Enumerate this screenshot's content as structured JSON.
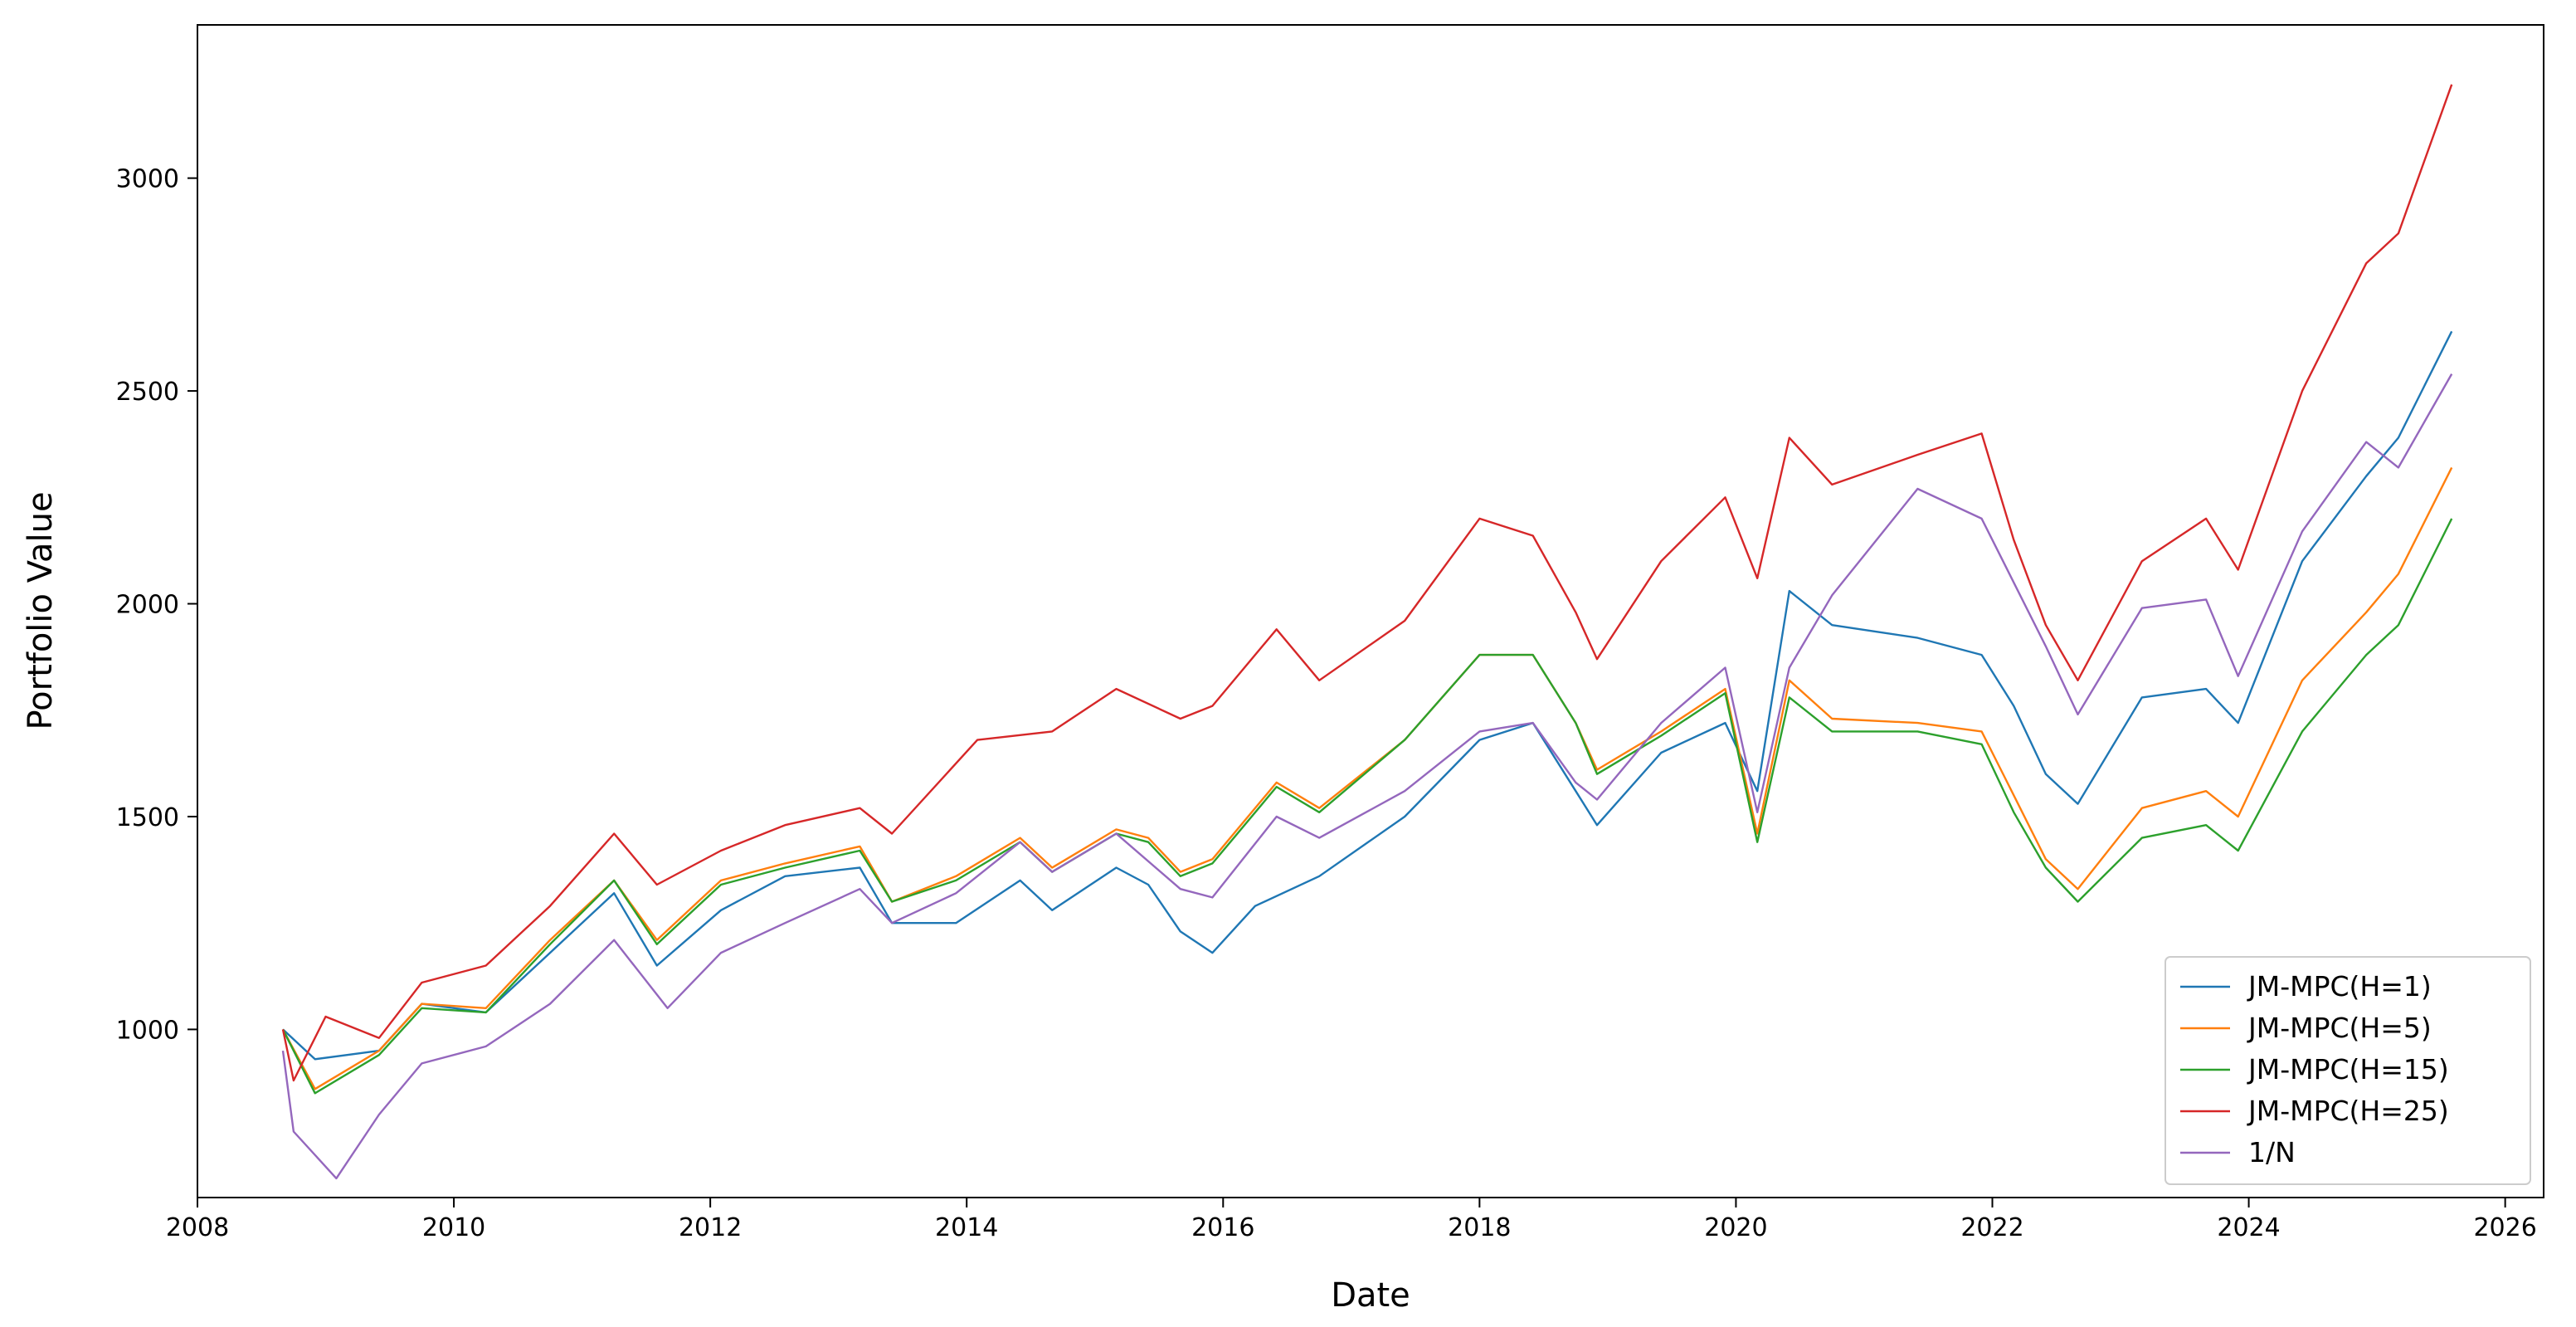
{
  "chart_data": {
    "type": "line",
    "title": "",
    "xlabel": "Date",
    "ylabel": "Portfolio Value",
    "xlim": [
      2008.0,
      2026.3
    ],
    "ylim": [
      605,
      3360
    ],
    "x_ticks": [
      2008,
      2010,
      2012,
      2014,
      2016,
      2018,
      2020,
      2022,
      2024,
      2026
    ],
    "y_ticks": [
      1000,
      1500,
      2000,
      2500,
      3000
    ],
    "grid": false,
    "legend_position": "bottom-right",
    "series": [
      {
        "name": "JM-MPC(H=1)",
        "color": "#1f77b4",
        "points": [
          [
            "2008-09",
            1000
          ],
          [
            "2008-12",
            930
          ],
          [
            "2009-06",
            950
          ],
          [
            "2009-10",
            1060
          ],
          [
            "2010-04",
            1040
          ],
          [
            "2010-10",
            1180
          ],
          [
            "2011-04",
            1320
          ],
          [
            "2011-08",
            1150
          ],
          [
            "2012-02",
            1280
          ],
          [
            "2012-08",
            1360
          ],
          [
            "2013-03",
            1380
          ],
          [
            "2013-06",
            1250
          ],
          [
            "2013-12",
            1250
          ],
          [
            "2014-06",
            1350
          ],
          [
            "2014-09",
            1280
          ],
          [
            "2015-03",
            1380
          ],
          [
            "2015-06",
            1340
          ],
          [
            "2015-09",
            1230
          ],
          [
            "2015-12",
            1180
          ],
          [
            "2016-04",
            1290
          ],
          [
            "2016-10",
            1360
          ],
          [
            "2017-06",
            1500
          ],
          [
            "2018-01",
            1680
          ],
          [
            "2018-06",
            1720
          ],
          [
            "2018-10",
            1560
          ],
          [
            "2018-12",
            1480
          ],
          [
            "2019-06",
            1650
          ],
          [
            "2019-12",
            1720
          ],
          [
            "2020-03",
            1560
          ],
          [
            "2020-06",
            2030
          ],
          [
            "2020-10",
            1950
          ],
          [
            "2021-06",
            1920
          ],
          [
            "2021-12",
            1880
          ],
          [
            "2022-03",
            1760
          ],
          [
            "2022-06",
            1600
          ],
          [
            "2022-09",
            1530
          ],
          [
            "2023-03",
            1780
          ],
          [
            "2023-09",
            1800
          ],
          [
            "2023-12",
            1720
          ],
          [
            "2024-06",
            2100
          ],
          [
            "2024-12",
            2300
          ],
          [
            "2025-03",
            2390
          ],
          [
            "2025-08",
            2640
          ]
        ]
      },
      {
        "name": "JM-MPC(H=5)",
        "color": "#ff7f0e",
        "points": [
          [
            "2008-09",
            1000
          ],
          [
            "2008-12",
            860
          ],
          [
            "2009-06",
            950
          ],
          [
            "2009-10",
            1060
          ],
          [
            "2010-04",
            1050
          ],
          [
            "2010-10",
            1210
          ],
          [
            "2011-04",
            1350
          ],
          [
            "2011-08",
            1210
          ],
          [
            "2012-02",
            1350
          ],
          [
            "2012-08",
            1390
          ],
          [
            "2013-03",
            1430
          ],
          [
            "2013-06",
            1300
          ],
          [
            "2013-12",
            1360
          ],
          [
            "2014-06",
            1450
          ],
          [
            "2014-09",
            1380
          ],
          [
            "2015-03",
            1470
          ],
          [
            "2015-06",
            1450
          ],
          [
            "2015-09",
            1370
          ],
          [
            "2015-12",
            1400
          ],
          [
            "2016-06",
            1580
          ],
          [
            "2016-10",
            1520
          ],
          [
            "2017-06",
            1680
          ],
          [
            "2018-01",
            1880
          ],
          [
            "2018-06",
            1880
          ],
          [
            "2018-10",
            1720
          ],
          [
            "2018-12",
            1610
          ],
          [
            "2019-06",
            1700
          ],
          [
            "2019-12",
            1800
          ],
          [
            "2020-03",
            1460
          ],
          [
            "2020-06",
            1820
          ],
          [
            "2020-10",
            1730
          ],
          [
            "2021-06",
            1720
          ],
          [
            "2021-12",
            1700
          ],
          [
            "2022-03",
            1550
          ],
          [
            "2022-06",
            1400
          ],
          [
            "2022-09",
            1330
          ],
          [
            "2023-03",
            1520
          ],
          [
            "2023-09",
            1560
          ],
          [
            "2023-12",
            1500
          ],
          [
            "2024-06",
            1820
          ],
          [
            "2024-12",
            1980
          ],
          [
            "2025-03",
            2070
          ],
          [
            "2025-08",
            2320
          ]
        ]
      },
      {
        "name": "JM-MPC(H=15)",
        "color": "#2ca02c",
        "points": [
          [
            "2008-09",
            1000
          ],
          [
            "2008-12",
            850
          ],
          [
            "2009-06",
            940
          ],
          [
            "2009-10",
            1050
          ],
          [
            "2010-04",
            1040
          ],
          [
            "2010-10",
            1200
          ],
          [
            "2011-04",
            1350
          ],
          [
            "2011-08",
            1200
          ],
          [
            "2012-02",
            1340
          ],
          [
            "2012-08",
            1380
          ],
          [
            "2013-03",
            1420
          ],
          [
            "2013-06",
            1300
          ],
          [
            "2013-12",
            1350
          ],
          [
            "2014-06",
            1440
          ],
          [
            "2014-09",
            1370
          ],
          [
            "2015-03",
            1460
          ],
          [
            "2015-06",
            1440
          ],
          [
            "2015-09",
            1360
          ],
          [
            "2015-12",
            1390
          ],
          [
            "2016-06",
            1570
          ],
          [
            "2016-10",
            1510
          ],
          [
            "2017-06",
            1680
          ],
          [
            "2018-01",
            1880
          ],
          [
            "2018-06",
            1880
          ],
          [
            "2018-10",
            1720
          ],
          [
            "2018-12",
            1600
          ],
          [
            "2019-06",
            1690
          ],
          [
            "2019-12",
            1790
          ],
          [
            "2020-03",
            1440
          ],
          [
            "2020-06",
            1780
          ],
          [
            "2020-10",
            1700
          ],
          [
            "2021-06",
            1700
          ],
          [
            "2021-12",
            1670
          ],
          [
            "2022-03",
            1510
          ],
          [
            "2022-06",
            1380
          ],
          [
            "2022-09",
            1300
          ],
          [
            "2023-03",
            1450
          ],
          [
            "2023-09",
            1480
          ],
          [
            "2023-12",
            1420
          ],
          [
            "2024-06",
            1700
          ],
          [
            "2024-12",
            1880
          ],
          [
            "2025-03",
            1950
          ],
          [
            "2025-08",
            2200
          ]
        ]
      },
      {
        "name": "JM-MPC(H=25)",
        "color": "#d62728",
        "points": [
          [
            "2008-09",
            1000
          ],
          [
            "2008-10",
            880
          ],
          [
            "2009-01",
            1030
          ],
          [
            "2009-06",
            980
          ],
          [
            "2009-10",
            1110
          ],
          [
            "2010-04",
            1150
          ],
          [
            "2010-10",
            1290
          ],
          [
            "2011-04",
            1460
          ],
          [
            "2011-08",
            1340
          ],
          [
            "2012-02",
            1420
          ],
          [
            "2012-08",
            1480
          ],
          [
            "2013-03",
            1520
          ],
          [
            "2013-06",
            1460
          ],
          [
            "2014-02",
            1680
          ],
          [
            "2014-09",
            1700
          ],
          [
            "2015-03",
            1800
          ],
          [
            "2015-09",
            1730
          ],
          [
            "2015-12",
            1760
          ],
          [
            "2016-06",
            1940
          ],
          [
            "2016-10",
            1820
          ],
          [
            "2017-06",
            1960
          ],
          [
            "2018-01",
            2200
          ],
          [
            "2018-06",
            2160
          ],
          [
            "2018-10",
            1980
          ],
          [
            "2018-12",
            1870
          ],
          [
            "2019-06",
            2100
          ],
          [
            "2019-12",
            2250
          ],
          [
            "2020-03",
            2060
          ],
          [
            "2020-06",
            2390
          ],
          [
            "2020-10",
            2280
          ],
          [
            "2021-06",
            2350
          ],
          [
            "2021-12",
            2400
          ],
          [
            "2022-03",
            2150
          ],
          [
            "2022-06",
            1950
          ],
          [
            "2022-09",
            1820
          ],
          [
            "2023-03",
            2100
          ],
          [
            "2023-09",
            2200
          ],
          [
            "2023-12",
            2080
          ],
          [
            "2024-06",
            2500
          ],
          [
            "2024-12",
            2800
          ],
          [
            "2025-03",
            2870
          ],
          [
            "2025-08",
            3220
          ]
        ]
      },
      {
        "name": "1/N",
        "color": "#9467bd",
        "points": [
          [
            "2008-09",
            950
          ],
          [
            "2008-10",
            760
          ],
          [
            "2009-02",
            650
          ],
          [
            "2009-06",
            800
          ],
          [
            "2009-10",
            920
          ],
          [
            "2010-04",
            960
          ],
          [
            "2010-10",
            1060
          ],
          [
            "2011-04",
            1210
          ],
          [
            "2011-09",
            1050
          ],
          [
            "2012-02",
            1180
          ],
          [
            "2012-08",
            1250
          ],
          [
            "2013-03",
            1330
          ],
          [
            "2013-06",
            1250
          ],
          [
            "2013-12",
            1320
          ],
          [
            "2014-06",
            1440
          ],
          [
            "2014-09",
            1370
          ],
          [
            "2015-03",
            1460
          ],
          [
            "2015-09",
            1330
          ],
          [
            "2015-12",
            1310
          ],
          [
            "2016-06",
            1500
          ],
          [
            "2016-10",
            1450
          ],
          [
            "2017-06",
            1560
          ],
          [
            "2018-01",
            1700
          ],
          [
            "2018-06",
            1720
          ],
          [
            "2018-10",
            1580
          ],
          [
            "2018-12",
            1540
          ],
          [
            "2019-06",
            1720
          ],
          [
            "2019-12",
            1850
          ],
          [
            "2020-03",
            1510
          ],
          [
            "2020-06",
            1850
          ],
          [
            "2020-10",
            2020
          ],
          [
            "2021-06",
            2270
          ],
          [
            "2021-12",
            2200
          ],
          [
            "2022-03",
            2050
          ],
          [
            "2022-06",
            1900
          ],
          [
            "2022-09",
            1740
          ],
          [
            "2023-03",
            1990
          ],
          [
            "2023-09",
            2010
          ],
          [
            "2023-12",
            1830
          ],
          [
            "2024-06",
            2170
          ],
          [
            "2024-12",
            2380
          ],
          [
            "2025-03",
            2320
          ],
          [
            "2025-08",
            2540
          ]
        ]
      }
    ]
  }
}
